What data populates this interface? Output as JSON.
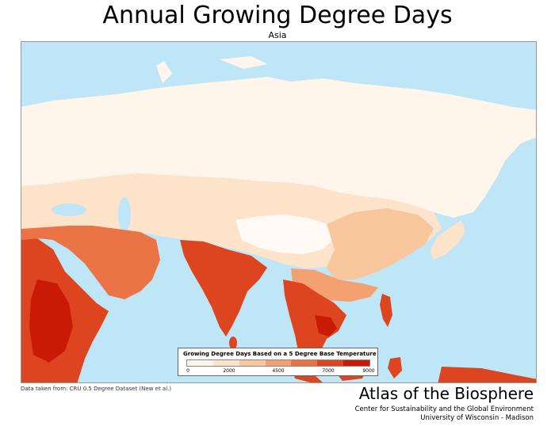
{
  "header": {
    "title": "Annual Growing Degree Days",
    "subtitle": "Asia"
  },
  "legend": {
    "title": "Growing Degree Days Based on a 5 Degree Base Temperature",
    "ticks": [
      "0",
      "2000",
      "4500",
      "7000",
      "9000"
    ],
    "colors": [
      "#fff5ea",
      "#fde3c9",
      "#f9c79e",
      "#f3a170",
      "#ea7446",
      "#dd4420",
      "#c91a05"
    ]
  },
  "map": {
    "ocean_color": "#bfe6f7",
    "land_low_color": "#fff5ea",
    "land_high_color": "#c91a05"
  },
  "footer": {
    "source": "Data taken from: CRU 0.5 Degree Dataset (New et al.)",
    "atlas_title": "Atlas of the Biosphere",
    "center": "Center for Sustainability and the Global Environment",
    "university": "University of Wisconsin - Madison"
  }
}
